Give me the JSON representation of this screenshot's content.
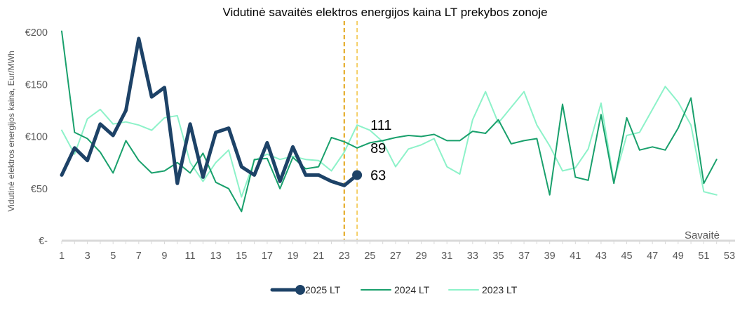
{
  "chart_data": {
    "type": "line",
    "title": "Vidutinė savaitės elektros energijos kaina LT prekybos zonoje",
    "xlabel": "Savaitė",
    "ylabel": "Vidutinė elektros energijos kaina, Eur/MWh",
    "xlim": [
      1,
      53
    ],
    "ylim": [
      0,
      200
    ],
    "x_ticks": [
      1,
      3,
      5,
      7,
      9,
      11,
      13,
      15,
      17,
      19,
      21,
      23,
      25,
      27,
      29,
      31,
      33,
      35,
      37,
      39,
      41,
      43,
      45,
      47,
      49,
      51,
      53
    ],
    "y_ticks": [
      200,
      150,
      100,
      50,
      0
    ],
    "y_tick_labels": [
      "€200",
      "€150",
      "€100",
      "€50",
      "€-"
    ],
    "grid": false,
    "legend_position": "bottom",
    "series": [
      {
        "name": "2025 LT",
        "color": "#1d4267",
        "last_point_marker": true,
        "x_start": 1,
        "values": [
          63,
          89,
          77,
          112,
          101,
          125,
          194,
          138,
          147,
          55,
          112,
          61,
          104,
          108,
          71,
          63,
          94,
          57,
          90,
          63,
          63,
          57,
          53,
          63
        ]
      },
      {
        "name": "2024 LT",
        "color": "#19a06c",
        "last_point_marker": false,
        "x_start": 1,
        "values": [
          201,
          104,
          98,
          85,
          65,
          96,
          77,
          65,
          67,
          75,
          65,
          84,
          56,
          50,
          28,
          78,
          79,
          50,
          80,
          69,
          71,
          99,
          95,
          89,
          94,
          96,
          99,
          101,
          100,
          102,
          96,
          96,
          105,
          103,
          116,
          93,
          96,
          98,
          44,
          131,
          61,
          58,
          121,
          55,
          118,
          87,
          90,
          87,
          108,
          137,
          55,
          78
        ]
      },
      {
        "name": "2023 LT",
        "color": "#8df2c9",
        "last_point_marker": false,
        "x_start": 1,
        "values": [
          106,
          83,
          117,
          126,
          112,
          114,
          111,
          106,
          118,
          120,
          75,
          57,
          75,
          87,
          42,
          77,
          83,
          78,
          81,
          78,
          77,
          67,
          85,
          111,
          106,
          95,
          71,
          88,
          92,
          98,
          71,
          64,
          116,
          143,
          113,
          128,
          143,
          111,
          91,
          67,
          70,
          88,
          132,
          57,
          101,
          104,
          126,
          148,
          133,
          111,
          47,
          44
        ]
      }
    ],
    "data_labels": [
      {
        "series": 2,
        "x": 24,
        "text": "111"
      },
      {
        "series": 1,
        "x": 24,
        "text": "89"
      },
      {
        "series": 0,
        "x": 24,
        "text": "63"
      }
    ],
    "reference_lines": [
      {
        "x": 23,
        "color": "#e2a312",
        "dashed": true
      },
      {
        "x": 24,
        "color": "#f3c64a",
        "dashed": true
      }
    ]
  }
}
